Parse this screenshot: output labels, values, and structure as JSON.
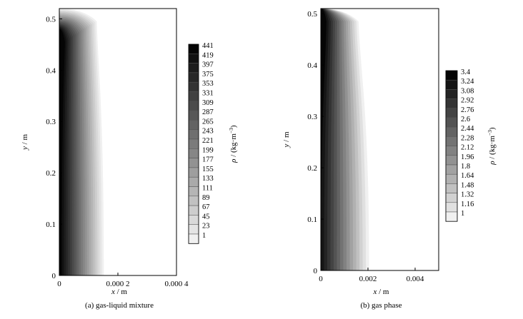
{
  "chart_data": [
    {
      "type": "heatmap",
      "caption": "(a) gas-liquid mixture",
      "xlabel_var": "x",
      "xlabel_unit": " / m",
      "ylabel_var": "y",
      "ylabel_unit": " / m",
      "colorbar_var": "ρ",
      "colorbar_unit": " / (kg·m",
      "colorbar_sup": "−3",
      "colorbar_close": ")",
      "xlim": [
        0,
        0.0004
      ],
      "ylim": [
        0,
        0.52
      ],
      "xticks": [
        {
          "value": 0,
          "label": "0"
        },
        {
          "value": 0.0002,
          "label": "0.000 2"
        },
        {
          "value": 0.0004,
          "label": "0.000 4"
        }
      ],
      "yticks": [
        {
          "value": 0,
          "label": "0"
        },
        {
          "value": 0.1,
          "label": "0.1"
        },
        {
          "value": 0.2,
          "label": "0.2"
        },
        {
          "value": 0.3,
          "label": "0.3"
        },
        {
          "value": 0.4,
          "label": "0.4"
        },
        {
          "value": 0.5,
          "label": "0.5"
        }
      ],
      "levels": [
        "441",
        "419",
        "397",
        "375",
        "353",
        "331",
        "309",
        "287",
        "265",
        "243",
        "221",
        "199",
        "177",
        "155",
        "133",
        "111",
        "89",
        "67",
        "45",
        "23",
        "1"
      ],
      "front_x": 0.000152,
      "front_top_y": 0.52,
      "front_bulge_x": 0.000128,
      "front_bulge_y": 0.4,
      "core_x": 8.5e-06,
      "core_top_y": 0.48
    },
    {
      "type": "heatmap",
      "caption": "(b) gas phase",
      "xlabel_var": "x",
      "xlabel_unit": " / m",
      "ylabel_var": "y",
      "ylabel_unit": " / m",
      "colorbar_var": "ρ",
      "colorbar_unit": " / (kg·m",
      "colorbar_sup": "−3",
      "colorbar_close": ")",
      "xlim": [
        0,
        0.005
      ],
      "ylim": [
        0,
        0.51
      ],
      "xticks": [
        {
          "value": 0,
          "label": "0"
        },
        {
          "value": 0.002,
          "label": "0.002"
        },
        {
          "value": 0.004,
          "label": "0.004"
        }
      ],
      "yticks": [
        {
          "value": 0,
          "label": "0"
        },
        {
          "value": 0.1,
          "label": "0.1"
        },
        {
          "value": 0.2,
          "label": "0.2"
        },
        {
          "value": 0.3,
          "label": "0.3"
        },
        {
          "value": 0.4,
          "label": "0.4"
        },
        {
          "value": 0.5,
          "label": "0.5"
        }
      ],
      "levels": [
        "3.4",
        "3.24",
        "3.08",
        "2.92",
        "2.76",
        "2.6",
        "2.44",
        "2.28",
        "2.12",
        "1.96",
        "1.8",
        "1.64",
        "1.48",
        "1.32",
        "1.16",
        "1"
      ],
      "front_x": 0.00205,
      "front_top_y": 0.51,
      "front_bulge_x": 0.0016,
      "front_bulge_y": 0.38,
      "core_x": 0.0,
      "core_top_y": 0.51
    }
  ]
}
